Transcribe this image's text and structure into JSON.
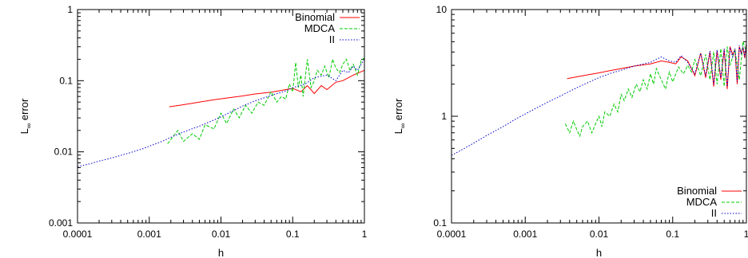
{
  "chart_data": [
    {
      "type": "line",
      "xlabel": "h",
      "ylabel_main": "L",
      "ylabel_sub": "∞",
      "ylabel_rest": " error",
      "xscale": "log",
      "yscale": "log",
      "xlim": [
        0.0001,
        1
      ],
      "ylim": [
        0.001,
        1
      ],
      "xticks": [
        {
          "v": 0.0001,
          "label": "0.0001"
        },
        {
          "v": 0.001,
          "label": "0.001"
        },
        {
          "v": 0.01,
          "label": "0.01"
        },
        {
          "v": 0.1,
          "label": "0.1"
        },
        {
          "v": 1,
          "label": "1"
        }
      ],
      "yticks": [
        {
          "v": 0.001,
          "label": "0.001"
        },
        {
          "v": 0.01,
          "label": "0.01"
        },
        {
          "v": 0.1,
          "label": "0.1"
        },
        {
          "v": 1,
          "label": "1"
        }
      ],
      "legend_position": "top-right",
      "series": [
        {
          "name": "Binomial",
          "color": "#ff0000",
          "dash": "",
          "x": [
            0.0019,
            0.003,
            0.005,
            0.008,
            0.012,
            0.02,
            0.03,
            0.05,
            0.07,
            0.1,
            0.13,
            0.16,
            0.2,
            0.25,
            0.3,
            0.4,
            0.5,
            0.7,
            1.0
          ],
          "y": [
            0.043,
            0.046,
            0.05,
            0.054,
            0.057,
            0.061,
            0.065,
            0.069,
            0.073,
            0.078,
            0.07,
            0.085,
            0.066,
            0.085,
            0.075,
            0.095,
            0.1,
            0.12,
            0.14
          ]
        },
        {
          "name": "MDCA",
          "color": "#00cc00",
          "dash": "4,2",
          "x": [
            0.0018,
            0.0025,
            0.003,
            0.004,
            0.005,
            0.006,
            0.008,
            0.01,
            0.012,
            0.015,
            0.018,
            0.022,
            0.027,
            0.033,
            0.04,
            0.05,
            0.06,
            0.07,
            0.08,
            0.09,
            0.1,
            0.11,
            0.12,
            0.13,
            0.14,
            0.16,
            0.18,
            0.2,
            0.22,
            0.25,
            0.28,
            0.32,
            0.36,
            0.4,
            0.45,
            0.5,
            0.56,
            0.63,
            0.7,
            0.8,
            0.9,
            1.0
          ],
          "y": [
            0.013,
            0.02,
            0.014,
            0.018,
            0.015,
            0.024,
            0.021,
            0.035,
            0.025,
            0.04,
            0.03,
            0.045,
            0.035,
            0.05,
            0.045,
            0.07,
            0.05,
            0.06,
            0.055,
            0.09,
            0.07,
            0.18,
            0.08,
            0.12,
            0.06,
            0.2,
            0.08,
            0.1,
            0.14,
            0.12,
            0.16,
            0.11,
            0.2,
            0.15,
            0.13,
            0.17,
            0.2,
            0.14,
            0.17,
            0.12,
            0.19,
            0.21
          ]
        },
        {
          "name": "II",
          "color": "#0000cc",
          "dash": "1.5,2",
          "x": [
            0.0001,
            0.00015,
            0.0002,
            0.0003,
            0.0005,
            0.0008,
            0.001,
            0.0015,
            0.002,
            0.003,
            0.005,
            0.008,
            0.01,
            0.015,
            0.02,
            0.03,
            0.05,
            0.08,
            0.1,
            0.15,
            0.2,
            0.3,
            0.4,
            0.5,
            0.6,
            0.7,
            0.8,
            0.9,
            1.0
          ],
          "y": [
            0.0062,
            0.0068,
            0.0074,
            0.0082,
            0.0095,
            0.011,
            0.012,
            0.014,
            0.016,
            0.019,
            0.023,
            0.028,
            0.031,
            0.038,
            0.044,
            0.052,
            0.062,
            0.072,
            0.08,
            0.09,
            0.11,
            0.12,
            0.1,
            0.14,
            0.13,
            0.16,
            0.14,
            0.17,
            0.2
          ]
        }
      ]
    },
    {
      "type": "line",
      "xlabel": "h",
      "ylabel_main": "L",
      "ylabel_sub": "∞",
      "ylabel_rest": " error",
      "xscale": "log",
      "yscale": "log",
      "xlim": [
        0.0001,
        1
      ],
      "ylim": [
        0.1,
        10
      ],
      "xticks": [
        {
          "v": 0.0001,
          "label": "0.0001"
        },
        {
          "v": 0.001,
          "label": "0.001"
        },
        {
          "v": 0.01,
          "label": "0.01"
        },
        {
          "v": 0.1,
          "label": "0.1"
        },
        {
          "v": 1,
          "label": "1"
        }
      ],
      "yticks": [
        {
          "v": 0.1,
          "label": "0.1"
        },
        {
          "v": 1,
          "label": "1"
        },
        {
          "v": 10,
          "label": "10"
        }
      ],
      "legend_position": "bottom-right",
      "series": [
        {
          "name": "Binomial",
          "color": "#ff0000",
          "dash": "",
          "x": [
            0.0037,
            0.006,
            0.01,
            0.015,
            0.02,
            0.03,
            0.05,
            0.07,
            0.09,
            0.11,
            0.13,
            0.16,
            0.2,
            0.24,
            0.28,
            0.32,
            0.36,
            0.4,
            0.45,
            0.5,
            0.55,
            0.6,
            0.65,
            0.7,
            0.75,
            0.8,
            0.85,
            0.9,
            0.95,
            1.0
          ],
          "y": [
            2.25,
            2.4,
            2.55,
            2.7,
            2.8,
            2.95,
            3.1,
            3.3,
            3.2,
            3.1,
            3.6,
            3.3,
            2.4,
            3.9,
            2.3,
            4.0,
            1.9,
            4.1,
            2.2,
            4.2,
            1.8,
            4.5,
            3.8,
            4.2,
            2.0,
            4.5,
            3.9,
            4.4,
            3.5,
            4.8
          ]
        },
        {
          "name": "MDCA",
          "color": "#00cc00",
          "dash": "4,2",
          "x": [
            0.0035,
            0.004,
            0.0045,
            0.005,
            0.0055,
            0.006,
            0.007,
            0.008,
            0.009,
            0.01,
            0.011,
            0.012,
            0.014,
            0.016,
            0.018,
            0.02,
            0.022,
            0.025,
            0.028,
            0.032,
            0.036,
            0.04,
            0.045,
            0.05,
            0.055,
            0.06,
            0.07,
            0.08,
            0.09,
            0.1,
            0.12,
            0.14,
            0.16,
            0.18,
            0.2,
            0.24,
            0.28,
            0.32,
            0.36,
            0.4,
            0.45,
            0.5,
            0.55,
            0.6,
            0.7,
            0.8,
            0.9,
            1.0
          ],
          "y": [
            0.85,
            0.7,
            0.9,
            0.75,
            0.65,
            0.8,
            0.9,
            0.7,
            0.85,
            1.0,
            0.8,
            1.1,
            1.0,
            1.3,
            1.1,
            1.6,
            1.4,
            1.8,
            1.5,
            2.0,
            1.7,
            2.2,
            1.8,
            2.5,
            2.0,
            2.8,
            2.2,
            1.8,
            2.6,
            2.1,
            2.9,
            2.5,
            3.0,
            2.6,
            3.4,
            2.4,
            3.8,
            2.2,
            4.0,
            2.0,
            4.3,
            1.9,
            4.5,
            3.0,
            4.2,
            2.2,
            5.0,
            4.0
          ]
        },
        {
          "name": "II",
          "color": "#0000cc",
          "dash": "1.5,2",
          "x": [
            0.0001,
            0.00015,
            0.0002,
            0.0003,
            0.0005,
            0.0008,
            0.001,
            0.0015,
            0.002,
            0.003,
            0.005,
            0.008,
            0.01,
            0.015,
            0.02,
            0.03,
            0.05,
            0.07,
            0.09,
            0.11,
            0.13,
            0.16,
            0.2,
            0.24,
            0.28,
            0.32,
            0.36,
            0.4,
            0.45,
            0.5,
            0.55,
            0.6,
            0.65,
            0.7,
            0.75,
            0.8,
            0.85,
            0.9,
            0.95,
            1.0
          ],
          "y": [
            0.43,
            0.5,
            0.56,
            0.66,
            0.8,
            0.97,
            1.05,
            1.22,
            1.35,
            1.55,
            1.85,
            2.15,
            2.3,
            2.55,
            2.7,
            2.95,
            3.2,
            3.6,
            3.3,
            3.2,
            3.7,
            3.2,
            2.5,
            3.9,
            2.4,
            4.1,
            2.0,
            4.2,
            2.3,
            4.3,
            1.9,
            4.4,
            3.6,
            4.3,
            2.1,
            4.6,
            3.8,
            4.5,
            3.6,
            4.9
          ]
        }
      ]
    }
  ]
}
